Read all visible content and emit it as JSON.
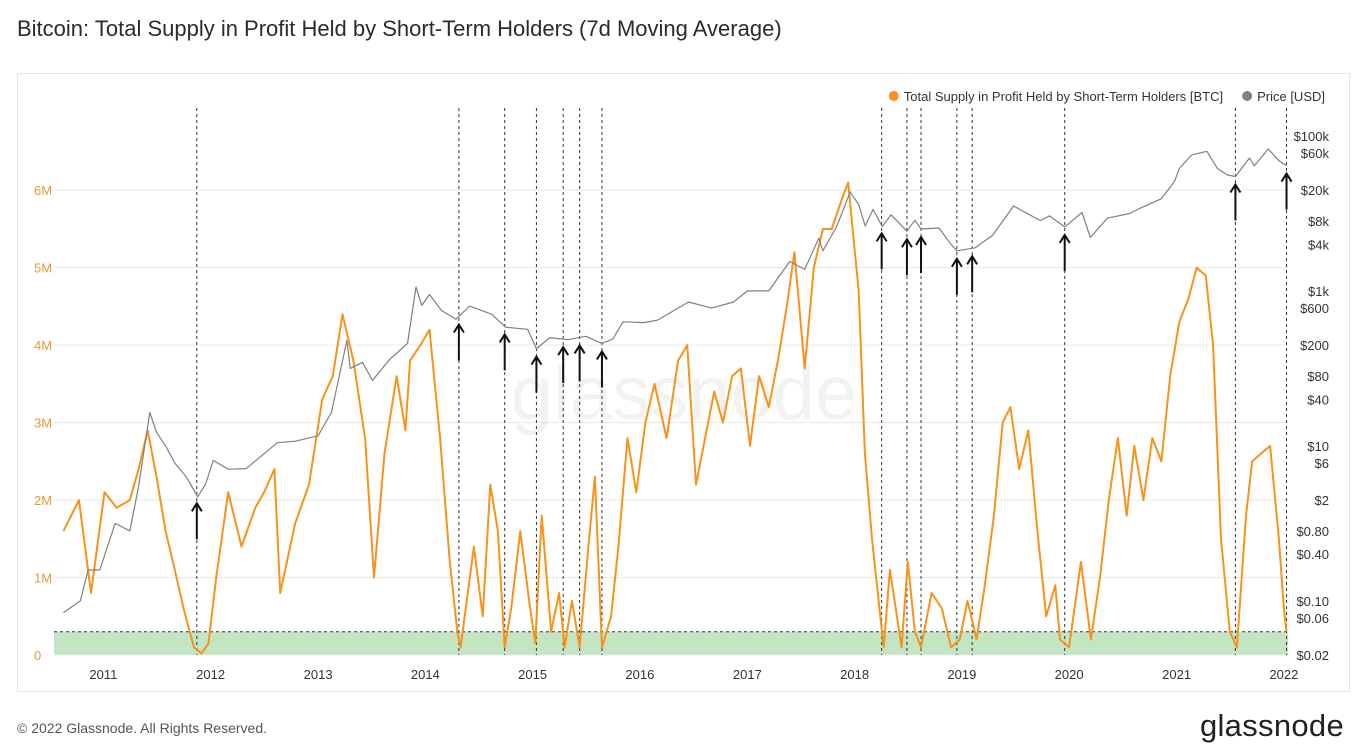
{
  "title": "Bitcoin: Total Supply in Profit Held by Short-Term Holders (7d Moving Average)",
  "footer": {
    "copyright": "© 2022 Glassnode. All Rights Reserved.",
    "logo": "glassnode"
  },
  "watermark": "glassnode",
  "colors": {
    "supply": "#f7931a",
    "price": "#808080",
    "band": "#b9e0b9",
    "vline": "#333333",
    "arrow": "#111111",
    "axis_left": "#e39a3b",
    "axis_right": "#333333"
  },
  "chart_data": {
    "type": "line",
    "title": "Bitcoin: Total Supply in Profit Held by Short-Term Holders (7d Moving Average)",
    "legend_position": "top-right",
    "grid": "horizontal",
    "series": [
      {
        "name": "Total Supply in Profit Held by Short-Term Holders [BTC]",
        "axis": "left",
        "color": "#f7931a",
        "points": [
          [
            "2010-08-18",
            1600000
          ],
          [
            "2010-10-10",
            2000000
          ],
          [
            "2010-11-20",
            800000
          ],
          [
            "2011-01-05",
            2100000
          ],
          [
            "2011-02-15",
            1900000
          ],
          [
            "2011-04-01",
            2000000
          ],
          [
            "2011-05-01",
            2400000
          ],
          [
            "2011-06-01",
            2900000
          ],
          [
            "2011-07-01",
            2300000
          ],
          [
            "2011-08-01",
            1600000
          ],
          [
            "2011-09-01",
            1100000
          ],
          [
            "2011-10-01",
            600000
          ],
          [
            "2011-11-05",
            100000
          ],
          [
            "2011-12-01",
            20000
          ],
          [
            "2011-12-25",
            150000
          ],
          [
            "2012-01-20",
            1000000
          ],
          [
            "2012-03-01",
            2100000
          ],
          [
            "2012-04-15",
            1400000
          ],
          [
            "2012-06-01",
            1900000
          ],
          [
            "2012-07-01",
            2100000
          ],
          [
            "2012-08-05",
            2400000
          ],
          [
            "2012-08-25",
            800000
          ],
          [
            "2012-10-15",
            1700000
          ],
          [
            "2012-12-01",
            2200000
          ],
          [
            "2013-01-15",
            3300000
          ],
          [
            "2013-02-20",
            3600000
          ],
          [
            "2013-03-25",
            4400000
          ],
          [
            "2013-05-01",
            3800000
          ],
          [
            "2013-06-10",
            2800000
          ],
          [
            "2013-07-10",
            1000000
          ],
          [
            "2013-08-15",
            2600000
          ],
          [
            "2013-09-25",
            3600000
          ],
          [
            "2013-10-25",
            2900000
          ],
          [
            "2013-11-10",
            3800000
          ],
          [
            "2013-12-15",
            4000000
          ],
          [
            "2014-01-15",
            4200000
          ],
          [
            "2014-02-20",
            2800000
          ],
          [
            "2014-03-25",
            1200000
          ],
          [
            "2014-04-20",
            300000
          ],
          [
            "2014-05-01",
            100000
          ],
          [
            "2014-05-15",
            500000
          ],
          [
            "2014-06-15",
            1400000
          ],
          [
            "2014-07-15",
            500000
          ],
          [
            "2014-08-10",
            2200000
          ],
          [
            "2014-09-05",
            1600000
          ],
          [
            "2014-09-28",
            100000
          ],
          [
            "2014-10-20",
            600000
          ],
          [
            "2014-11-20",
            1600000
          ],
          [
            "2014-12-20",
            700000
          ],
          [
            "2015-01-10",
            150000
          ],
          [
            "2015-02-01",
            1800000
          ],
          [
            "2015-03-05",
            300000
          ],
          [
            "2015-04-01",
            800000
          ],
          [
            "2015-04-20",
            100000
          ],
          [
            "2015-05-15",
            700000
          ],
          [
            "2015-06-10",
            100000
          ],
          [
            "2015-07-10",
            1400000
          ],
          [
            "2015-08-01",
            2300000
          ],
          [
            "2015-08-25",
            100000
          ],
          [
            "2015-09-25",
            500000
          ],
          [
            "2015-10-20",
            1400000
          ],
          [
            "2015-11-20",
            2800000
          ],
          [
            "2015-12-20",
            2100000
          ],
          [
            "2016-01-20",
            3000000
          ],
          [
            "2016-02-20",
            3500000
          ],
          [
            "2016-04-01",
            2800000
          ],
          [
            "2016-05-10",
            3800000
          ],
          [
            "2016-06-10",
            4000000
          ],
          [
            "2016-07-10",
            2200000
          ],
          [
            "2016-08-10",
            2800000
          ],
          [
            "2016-09-10",
            3400000
          ],
          [
            "2016-10-10",
            3000000
          ],
          [
            "2016-11-10",
            3600000
          ],
          [
            "2016-12-10",
            3700000
          ],
          [
            "2017-01-10",
            2700000
          ],
          [
            "2017-02-10",
            3600000
          ],
          [
            "2017-03-15",
            3200000
          ],
          [
            "2017-04-15",
            3800000
          ],
          [
            "2017-05-15",
            4500000
          ],
          [
            "2017-06-10",
            5200000
          ],
          [
            "2017-07-15",
            3700000
          ],
          [
            "2017-08-15",
            5000000
          ],
          [
            "2017-09-15",
            5500000
          ],
          [
            "2017-10-15",
            5500000
          ],
          [
            "2017-11-20",
            5900000
          ],
          [
            "2017-12-10",
            6100000
          ],
          [
            "2017-12-25",
            5500000
          ],
          [
            "2018-01-15",
            4700000
          ],
          [
            "2018-02-05",
            2600000
          ],
          [
            "2018-03-01",
            1500000
          ],
          [
            "2018-04-01",
            400000
          ],
          [
            "2018-04-10",
            100000
          ],
          [
            "2018-05-01",
            1100000
          ],
          [
            "2018-06-10",
            100000
          ],
          [
            "2018-07-01",
            1200000
          ],
          [
            "2018-07-25",
            300000
          ],
          [
            "2018-08-15",
            100000
          ],
          [
            "2018-09-20",
            800000
          ],
          [
            "2018-10-25",
            600000
          ],
          [
            "2018-11-25",
            100000
          ],
          [
            "2018-12-25",
            200000
          ],
          [
            "2019-01-20",
            700000
          ],
          [
            "2019-02-20",
            200000
          ],
          [
            "2019-03-20",
            900000
          ],
          [
            "2019-04-20",
            1800000
          ],
          [
            "2019-05-20",
            3000000
          ],
          [
            "2019-06-15",
            3200000
          ],
          [
            "2019-07-15",
            2400000
          ],
          [
            "2019-08-15",
            2900000
          ],
          [
            "2019-09-15",
            1600000
          ],
          [
            "2019-10-15",
            500000
          ],
          [
            "2019-11-15",
            900000
          ],
          [
            "2019-12-01",
            200000
          ],
          [
            "2020-01-01",
            100000
          ],
          [
            "2020-02-10",
            1200000
          ],
          [
            "2020-03-15",
            200000
          ],
          [
            "2020-04-15",
            1000000
          ],
          [
            "2020-05-15",
            2000000
          ],
          [
            "2020-06-15",
            2800000
          ],
          [
            "2020-07-15",
            1800000
          ],
          [
            "2020-08-10",
            2700000
          ],
          [
            "2020-09-10",
            2000000
          ],
          [
            "2020-10-10",
            2800000
          ],
          [
            "2020-11-10",
            2500000
          ],
          [
            "2020-12-10",
            3600000
          ],
          [
            "2021-01-10",
            4300000
          ],
          [
            "2021-02-10",
            4600000
          ],
          [
            "2021-03-10",
            5000000
          ],
          [
            "2021-04-10",
            4900000
          ],
          [
            "2021-05-05",
            4000000
          ],
          [
            "2021-06-01",
            1500000
          ],
          [
            "2021-07-01",
            300000
          ],
          [
            "2021-07-25",
            100000
          ],
          [
            "2021-08-25",
            1800000
          ],
          [
            "2021-09-15",
            2500000
          ],
          [
            "2021-10-15",
            2600000
          ],
          [
            "2021-11-15",
            2700000
          ],
          [
            "2021-12-15",
            1500000
          ],
          [
            "2022-01-01",
            600000
          ],
          [
            "2022-01-10",
            300000
          ]
        ]
      },
      {
        "name": "Price [USD]",
        "axis": "right",
        "scale": "log",
        "color": "#808080",
        "points": [
          [
            "2010-08-18",
            0.07
          ],
          [
            "2010-10-15",
            0.1
          ],
          [
            "2010-11-10",
            0.25
          ],
          [
            "2010-12-20",
            0.25
          ],
          [
            "2011-02-10",
            1
          ],
          [
            "2011-04-01",
            0.8
          ],
          [
            "2011-05-01",
            3
          ],
          [
            "2011-06-08",
            27
          ],
          [
            "2011-07-01",
            15
          ],
          [
            "2011-08-01",
            10
          ],
          [
            "2011-09-01",
            6
          ],
          [
            "2011-10-10",
            4
          ],
          [
            "2011-11-18",
            2.2
          ],
          [
            "2011-12-15",
            3.2
          ],
          [
            "2012-01-10",
            6.5
          ],
          [
            "2012-03-01",
            5
          ],
          [
            "2012-05-01",
            5.1
          ],
          [
            "2012-08-15",
            11
          ],
          [
            "2012-10-15",
            11.5
          ],
          [
            "2013-01-01",
            13.5
          ],
          [
            "2013-02-15",
            27
          ],
          [
            "2013-04-09",
            230
          ],
          [
            "2013-04-20",
            100
          ],
          [
            "2013-06-01",
            120
          ],
          [
            "2013-07-05",
            70
          ],
          [
            "2013-09-01",
            130
          ],
          [
            "2013-11-01",
            210
          ],
          [
            "2013-11-30",
            1120
          ],
          [
            "2013-12-20",
            650
          ],
          [
            "2014-01-15",
            900
          ],
          [
            "2014-02-25",
            560
          ],
          [
            "2014-04-15",
            430
          ],
          [
            "2014-06-01",
            640
          ],
          [
            "2014-08-15",
            500
          ],
          [
            "2014-10-01",
            340
          ],
          [
            "2014-12-15",
            320
          ],
          [
            "2015-01-14",
            180
          ],
          [
            "2015-03-01",
            250
          ],
          [
            "2015-05-01",
            235
          ],
          [
            "2015-07-01",
            260
          ],
          [
            "2015-08-25",
            210
          ],
          [
            "2015-10-01",
            240
          ],
          [
            "2015-11-05",
            400
          ],
          [
            "2016-01-15",
            390
          ],
          [
            "2016-03-01",
            420
          ],
          [
            "2016-06-15",
            720
          ],
          [
            "2016-09-01",
            600
          ],
          [
            "2016-11-15",
            720
          ],
          [
            "2017-01-01",
            1000
          ],
          [
            "2017-03-15",
            1000
          ],
          [
            "2017-05-25",
            2400
          ],
          [
            "2017-07-15",
            1900
          ],
          [
            "2017-09-01",
            4800
          ],
          [
            "2017-09-15",
            3300
          ],
          [
            "2017-11-01",
            6800
          ],
          [
            "2017-12-17",
            19000
          ],
          [
            "2018-01-15",
            13000
          ],
          [
            "2018-02-06",
            6900
          ],
          [
            "2018-03-05",
            11300
          ],
          [
            "2018-04-05",
            6800
          ],
          [
            "2018-05-05",
            9600
          ],
          [
            "2018-06-28",
            5900
          ],
          [
            "2018-07-25",
            8200
          ],
          [
            "2018-08-15",
            6300
          ],
          [
            "2018-10-15",
            6500
          ],
          [
            "2018-11-25",
            4000
          ],
          [
            "2018-12-15",
            3300
          ],
          [
            "2019-02-15",
            3600
          ],
          [
            "2019-04-15",
            5200
          ],
          [
            "2019-06-26",
            12500
          ],
          [
            "2019-08-01",
            10500
          ],
          [
            "2019-09-25",
            8100
          ],
          [
            "2019-10-26",
            9300
          ],
          [
            "2019-12-17",
            6700
          ],
          [
            "2020-02-14",
            10300
          ],
          [
            "2020-03-13",
            4900
          ],
          [
            "2020-05-10",
            8700
          ],
          [
            "2020-07-25",
            10000
          ],
          [
            "2020-09-01",
            11800
          ],
          [
            "2020-11-10",
            15500
          ],
          [
            "2020-12-25",
            26000
          ],
          [
            "2021-01-10",
            38000
          ],
          [
            "2021-02-21",
            57000
          ],
          [
            "2021-04-14",
            63500
          ],
          [
            "2021-05-20",
            38000
          ],
          [
            "2021-06-22",
            31500
          ],
          [
            "2021-07-20",
            30000
          ],
          [
            "2021-09-06",
            52000
          ],
          [
            "2021-09-22",
            41000
          ],
          [
            "2021-11-09",
            68000
          ],
          [
            "2021-12-15",
            48000
          ],
          [
            "2022-01-10",
            41500
          ]
        ]
      }
    ],
    "x_range": [
      "2010-07-17",
      "2022-01-15"
    ],
    "x_ticks": [
      "2011",
      "2012",
      "2013",
      "2014",
      "2015",
      "2016",
      "2017",
      "2018",
      "2019",
      "2020",
      "2021",
      "2022"
    ],
    "y_left": {
      "min": 0,
      "max": 6700000,
      "ticks": [
        0,
        1000000,
        2000000,
        3000000,
        4000000,
        5000000,
        6000000
      ],
      "tick_labels": [
        "0",
        "1M",
        "2M",
        "3M",
        "4M",
        "5M",
        "6M"
      ]
    },
    "y_right": {
      "scale": "log",
      "min": 0.02,
      "max": 100000,
      "ticks": [
        0.02,
        0.06,
        0.1,
        0.4,
        0.8,
        2,
        6,
        10,
        40,
        80,
        200,
        600,
        1000,
        4000,
        8000,
        20000,
        60000,
        100000
      ],
      "tick_labels": [
        "$0.02",
        "$0.06",
        "$0.10",
        "$0.40",
        "$0.80",
        "$2",
        "$6",
        "$10",
        "$40",
        "$80",
        "$200",
        "$600",
        "$1k",
        "$4k",
        "$8k",
        "$20k",
        "$60k",
        "$100k"
      ]
    },
    "threshold_band": {
      "from": 0,
      "to": 300000
    },
    "vertical_markers": [
      "2011-11-15",
      "2014-04-25",
      "2014-09-28",
      "2015-01-14",
      "2015-04-15",
      "2015-06-10",
      "2015-08-25",
      "2018-04-03",
      "2018-06-28",
      "2018-08-15",
      "2018-12-15",
      "2019-02-05",
      "2019-12-17",
      "2021-07-20",
      "2022-01-10"
    ]
  }
}
